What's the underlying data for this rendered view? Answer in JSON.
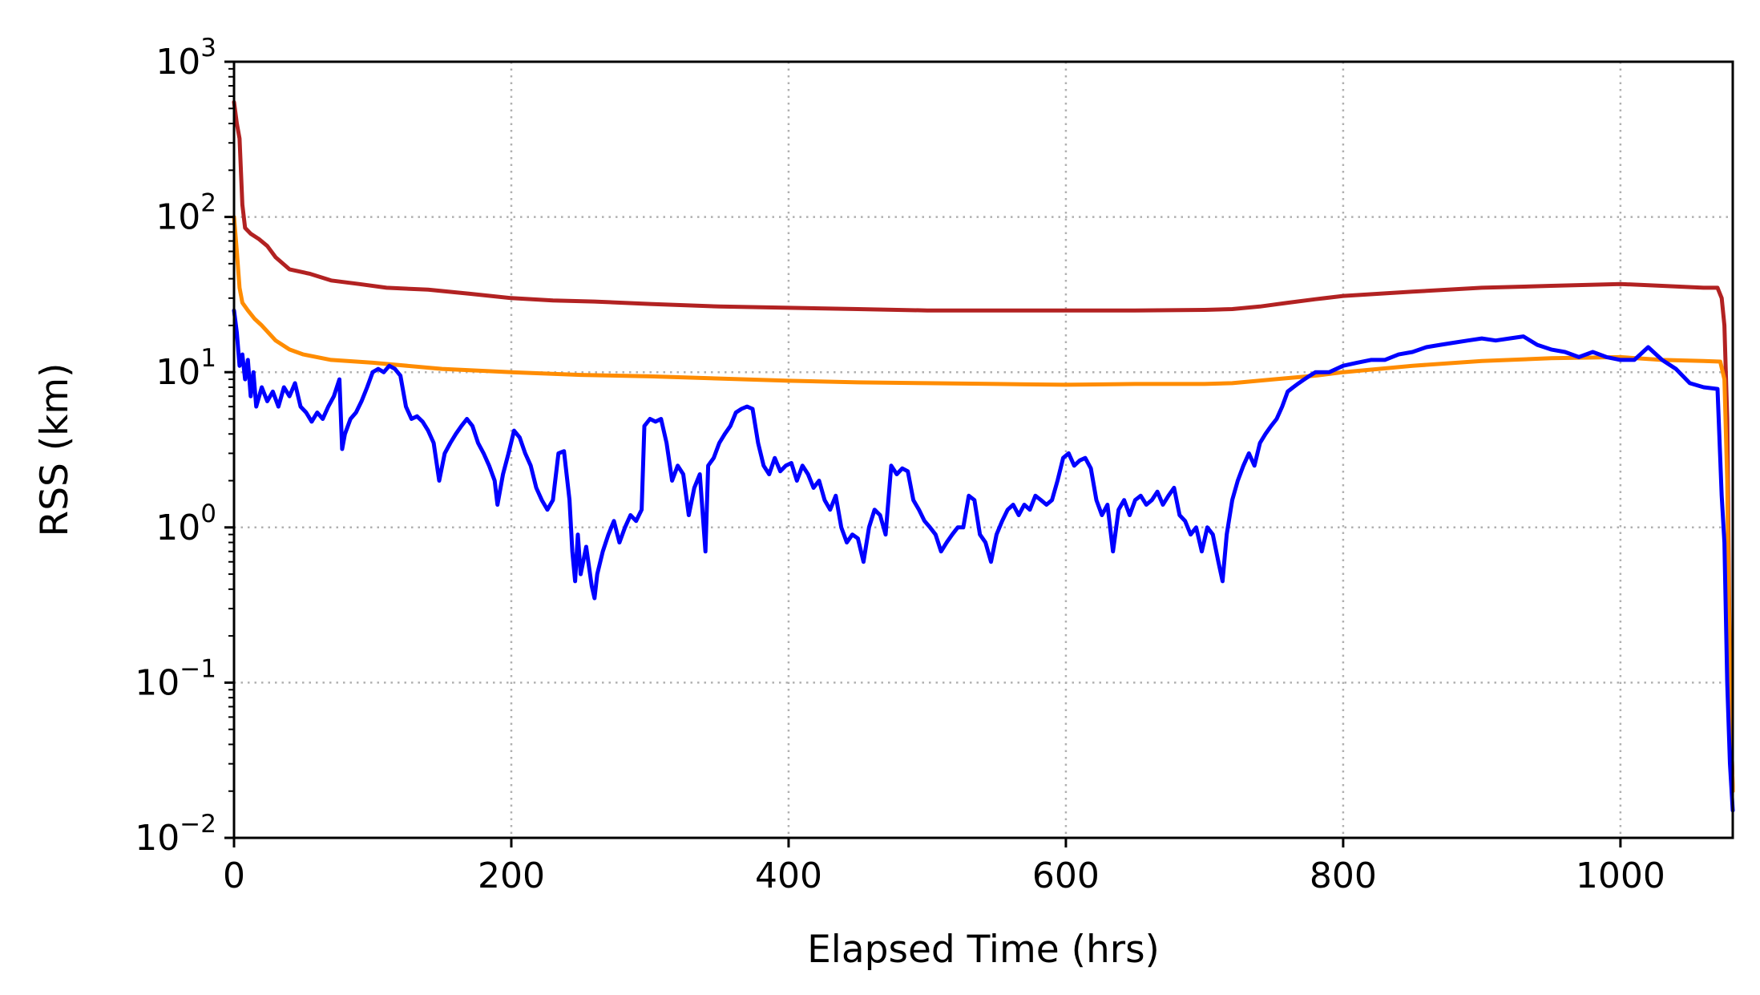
{
  "chart_data": {
    "type": "line",
    "title": "",
    "xlabel": "Elapsed Time (hrs)",
    "ylabel": "RSS (km)",
    "xlim": [
      0,
      1081
    ],
    "ylim": [
      0.01,
      1000
    ],
    "yscale": "log",
    "grid": true,
    "legend": "none",
    "x_ticks": [
      0,
      200,
      400,
      600,
      800,
      1000
    ],
    "x_tick_labels": [
      "0",
      "200",
      "400",
      "600",
      "800",
      "1000"
    ],
    "y_ticks": [
      0.01,
      0.1,
      1,
      10,
      100,
      1000
    ],
    "y_tick_labels": [
      {
        "base": "10",
        "exp": "−2"
      },
      {
        "base": "10",
        "exp": "−1"
      },
      {
        "base": "10",
        "exp": "0"
      },
      {
        "base": "10",
        "exp": "1"
      },
      {
        "base": "10",
        "exp": "2"
      },
      {
        "base": "10",
        "exp": "3"
      }
    ],
    "series": [
      {
        "color": "#b22222",
        "points": [
          [
            0,
            550
          ],
          [
            2,
            400
          ],
          [
            4,
            320
          ],
          [
            6,
            120
          ],
          [
            8,
            85
          ],
          [
            12,
            78
          ],
          [
            18,
            72
          ],
          [
            24,
            65
          ],
          [
            30,
            55
          ],
          [
            40,
            46
          ],
          [
            55,
            43
          ],
          [
            70,
            39
          ],
          [
            90,
            37
          ],
          [
            110,
            35
          ],
          [
            140,
            34
          ],
          [
            170,
            32
          ],
          [
            200,
            30
          ],
          [
            230,
            29
          ],
          [
            260,
            28.5
          ],
          [
            300,
            27.5
          ],
          [
            350,
            26.5
          ],
          [
            400,
            26
          ],
          [
            450,
            25.5
          ],
          [
            500,
            25
          ],
          [
            550,
            25
          ],
          [
            600,
            25
          ],
          [
            650,
            25
          ],
          [
            700,
            25.2
          ],
          [
            720,
            25.5
          ],
          [
            740,
            26.5
          ],
          [
            760,
            28
          ],
          [
            780,
            29.5
          ],
          [
            800,
            31
          ],
          [
            850,
            33
          ],
          [
            900,
            35
          ],
          [
            950,
            36
          ],
          [
            1000,
            37
          ],
          [
            1030,
            36
          ],
          [
            1060,
            35
          ],
          [
            1070,
            35
          ],
          [
            1073,
            30
          ],
          [
            1075,
            20
          ],
          [
            1077,
            5
          ],
          [
            1079,
            0.1
          ],
          [
            1081,
            0.02
          ]
        ]
      },
      {
        "color": "#ff8c00",
        "points": [
          [
            0,
            100
          ],
          [
            2,
            60
          ],
          [
            4,
            35
          ],
          [
            6,
            28
          ],
          [
            10,
            25
          ],
          [
            15,
            22
          ],
          [
            20,
            20
          ],
          [
            30,
            16
          ],
          [
            40,
            14
          ],
          [
            50,
            13
          ],
          [
            70,
            12
          ],
          [
            100,
            11.5
          ],
          [
            150,
            10.5
          ],
          [
            200,
            10
          ],
          [
            250,
            9.6
          ],
          [
            300,
            9.4
          ],
          [
            350,
            9.1
          ],
          [
            400,
            8.8
          ],
          [
            450,
            8.6
          ],
          [
            500,
            8.5
          ],
          [
            550,
            8.4
          ],
          [
            600,
            8.3
          ],
          [
            650,
            8.4
          ],
          [
            700,
            8.4
          ],
          [
            720,
            8.5
          ],
          [
            750,
            9
          ],
          [
            780,
            9.5
          ],
          [
            800,
            10
          ],
          [
            850,
            11
          ],
          [
            900,
            11.8
          ],
          [
            950,
            12.3
          ],
          [
            1000,
            12.5
          ],
          [
            1030,
            12
          ],
          [
            1060,
            11.8
          ],
          [
            1072,
            11.7
          ],
          [
            1075,
            9
          ],
          [
            1077,
            2
          ],
          [
            1079,
            0.1
          ],
          [
            1081,
            0.02
          ]
        ]
      },
      {
        "color": "#0000ff",
        "points": [
          [
            0,
            25
          ],
          [
            2,
            18
          ],
          [
            4,
            11
          ],
          [
            6,
            13
          ],
          [
            8,
            9
          ],
          [
            10,
            12
          ],
          [
            12,
            7
          ],
          [
            14,
            10
          ],
          [
            16,
            6
          ],
          [
            20,
            8
          ],
          [
            24,
            6.5
          ],
          [
            28,
            7.5
          ],
          [
            32,
            6
          ],
          [
            36,
            8
          ],
          [
            40,
            7
          ],
          [
            44,
            8.5
          ],
          [
            48,
            6
          ],
          [
            52,
            5.5
          ],
          [
            56,
            4.8
          ],
          [
            60,
            5.5
          ],
          [
            64,
            5
          ],
          [
            68,
            6
          ],
          [
            72,
            7
          ],
          [
            76,
            9
          ],
          [
            78,
            3.2
          ],
          [
            80,
            4
          ],
          [
            84,
            5
          ],
          [
            88,
            5.5
          ],
          [
            92,
            6.5
          ],
          [
            96,
            8
          ],
          [
            100,
            10
          ],
          [
            104,
            10.5
          ],
          [
            108,
            10
          ],
          [
            112,
            11
          ],
          [
            116,
            10.5
          ],
          [
            120,
            9.5
          ],
          [
            124,
            6
          ],
          [
            128,
            5
          ],
          [
            132,
            5.2
          ],
          [
            136,
            4.8
          ],
          [
            140,
            4.2
          ],
          [
            144,
            3.5
          ],
          [
            148,
            2
          ],
          [
            152,
            3
          ],
          [
            156,
            3.5
          ],
          [
            160,
            4
          ],
          [
            164,
            4.5
          ],
          [
            168,
            5
          ],
          [
            172,
            4.5
          ],
          [
            176,
            3.5
          ],
          [
            180,
            3
          ],
          [
            184,
            2.5
          ],
          [
            188,
            2
          ],
          [
            190,
            1.4
          ],
          [
            194,
            2.2
          ],
          [
            198,
            3
          ],
          [
            202,
            4.2
          ],
          [
            206,
            3.8
          ],
          [
            210,
            3
          ],
          [
            214,
            2.5
          ],
          [
            218,
            1.8
          ],
          [
            222,
            1.5
          ],
          [
            226,
            1.3
          ],
          [
            230,
            1.5
          ],
          [
            234,
            3
          ],
          [
            238,
            3.1
          ],
          [
            242,
            1.5
          ],
          [
            244,
            0.7
          ],
          [
            246,
            0.45
          ],
          [
            248,
            0.9
          ],
          [
            250,
            0.5
          ],
          [
            254,
            0.75
          ],
          [
            258,
            0.42
          ],
          [
            260,
            0.35
          ],
          [
            262,
            0.5
          ],
          [
            266,
            0.7
          ],
          [
            270,
            0.9
          ],
          [
            274,
            1.1
          ],
          [
            278,
            0.8
          ],
          [
            282,
            1
          ],
          [
            286,
            1.2
          ],
          [
            290,
            1.1
          ],
          [
            294,
            1.3
          ],
          [
            296,
            4.5
          ],
          [
            300,
            5
          ],
          [
            304,
            4.8
          ],
          [
            308,
            5
          ],
          [
            312,
            3.5
          ],
          [
            316,
            2
          ],
          [
            320,
            2.5
          ],
          [
            324,
            2.2
          ],
          [
            328,
            1.2
          ],
          [
            332,
            1.8
          ],
          [
            336,
            2.2
          ],
          [
            340,
            0.7
          ],
          [
            342,
            2.5
          ],
          [
            346,
            2.8
          ],
          [
            350,
            3.5
          ],
          [
            354,
            4
          ],
          [
            358,
            4.5
          ],
          [
            362,
            5.5
          ],
          [
            366,
            5.8
          ],
          [
            370,
            6
          ],
          [
            374,
            5.8
          ],
          [
            378,
            3.5
          ],
          [
            382,
            2.5
          ],
          [
            386,
            2.2
          ],
          [
            390,
            2.8
          ],
          [
            394,
            2.3
          ],
          [
            398,
            2.5
          ],
          [
            402,
            2.6
          ],
          [
            406,
            2
          ],
          [
            410,
            2.5
          ],
          [
            414,
            2.2
          ],
          [
            418,
            1.8
          ],
          [
            422,
            2
          ],
          [
            426,
            1.5
          ],
          [
            430,
            1.3
          ],
          [
            434,
            1.6
          ],
          [
            438,
            1
          ],
          [
            442,
            0.8
          ],
          [
            446,
            0.9
          ],
          [
            450,
            0.85
          ],
          [
            454,
            0.6
          ],
          [
            458,
            1
          ],
          [
            462,
            1.3
          ],
          [
            466,
            1.2
          ],
          [
            470,
            0.9
          ],
          [
            474,
            2.5
          ],
          [
            478,
            2.2
          ],
          [
            482,
            2.4
          ],
          [
            486,
            2.3
          ],
          [
            490,
            1.5
          ],
          [
            494,
            1.3
          ],
          [
            498,
            1.1
          ],
          [
            502,
            1
          ],
          [
            506,
            0.9
          ],
          [
            510,
            0.7
          ],
          [
            514,
            0.8
          ],
          [
            518,
            0.9
          ],
          [
            522,
            1
          ],
          [
            526,
            1
          ],
          [
            530,
            1.6
          ],
          [
            534,
            1.5
          ],
          [
            538,
            0.9
          ],
          [
            542,
            0.8
          ],
          [
            546,
            0.6
          ],
          [
            550,
            0.9
          ],
          [
            554,
            1.1
          ],
          [
            558,
            1.3
          ],
          [
            562,
            1.4
          ],
          [
            566,
            1.2
          ],
          [
            570,
            1.4
          ],
          [
            574,
            1.3
          ],
          [
            578,
            1.6
          ],
          [
            582,
            1.5
          ],
          [
            586,
            1.4
          ],
          [
            590,
            1.5
          ],
          [
            594,
            2
          ],
          [
            598,
            2.8
          ],
          [
            602,
            3
          ],
          [
            606,
            2.5
          ],
          [
            610,
            2.7
          ],
          [
            614,
            2.8
          ],
          [
            618,
            2.4
          ],
          [
            622,
            1.5
          ],
          [
            626,
            1.2
          ],
          [
            630,
            1.4
          ],
          [
            634,
            0.7
          ],
          [
            638,
            1.3
          ],
          [
            642,
            1.5
          ],
          [
            646,
            1.2
          ],
          [
            650,
            1.5
          ],
          [
            654,
            1.6
          ],
          [
            658,
            1.4
          ],
          [
            662,
            1.5
          ],
          [
            666,
            1.7
          ],
          [
            670,
            1.4
          ],
          [
            674,
            1.6
          ],
          [
            678,
            1.8
          ],
          [
            682,
            1.2
          ],
          [
            686,
            1.1
          ],
          [
            690,
            0.9
          ],
          [
            694,
            1.0
          ],
          [
            698,
            0.7
          ],
          [
            702,
            1
          ],
          [
            706,
            0.9
          ],
          [
            710,
            0.6
          ],
          [
            713,
            0.45
          ],
          [
            716,
            0.9
          ],
          [
            720,
            1.5
          ],
          [
            724,
            2
          ],
          [
            728,
            2.5
          ],
          [
            732,
            3
          ],
          [
            736,
            2.5
          ],
          [
            740,
            3.5
          ],
          [
            744,
            4
          ],
          [
            748,
            4.5
          ],
          [
            752,
            5
          ],
          [
            756,
            6
          ],
          [
            760,
            7.5
          ],
          [
            764,
            8
          ],
          [
            768,
            8.5
          ],
          [
            772,
            9
          ],
          [
            776,
            9.5
          ],
          [
            780,
            10
          ],
          [
            790,
            10
          ],
          [
            800,
            11
          ],
          [
            810,
            11.5
          ],
          [
            820,
            12
          ],
          [
            830,
            12
          ],
          [
            840,
            13
          ],
          [
            850,
            13.5
          ],
          [
            860,
            14.5
          ],
          [
            870,
            15
          ],
          [
            880,
            15.5
          ],
          [
            890,
            16
          ],
          [
            900,
            16.5
          ],
          [
            910,
            16
          ],
          [
            920,
            16.5
          ],
          [
            930,
            17
          ],
          [
            940,
            15
          ],
          [
            950,
            14
          ],
          [
            960,
            13.5
          ],
          [
            970,
            12.5
          ],
          [
            980,
            13.5
          ],
          [
            990,
            12.5
          ],
          [
            1000,
            12
          ],
          [
            1010,
            12
          ],
          [
            1020,
            14.5
          ],
          [
            1030,
            12
          ],
          [
            1040,
            10.5
          ],
          [
            1050,
            8.5
          ],
          [
            1060,
            8
          ],
          [
            1070,
            7.8
          ],
          [
            1073,
            1.6
          ],
          [
            1075,
            0.8
          ],
          [
            1077,
            0.1
          ],
          [
            1079,
            0.03
          ],
          [
            1081,
            0.015
          ]
        ]
      }
    ]
  }
}
